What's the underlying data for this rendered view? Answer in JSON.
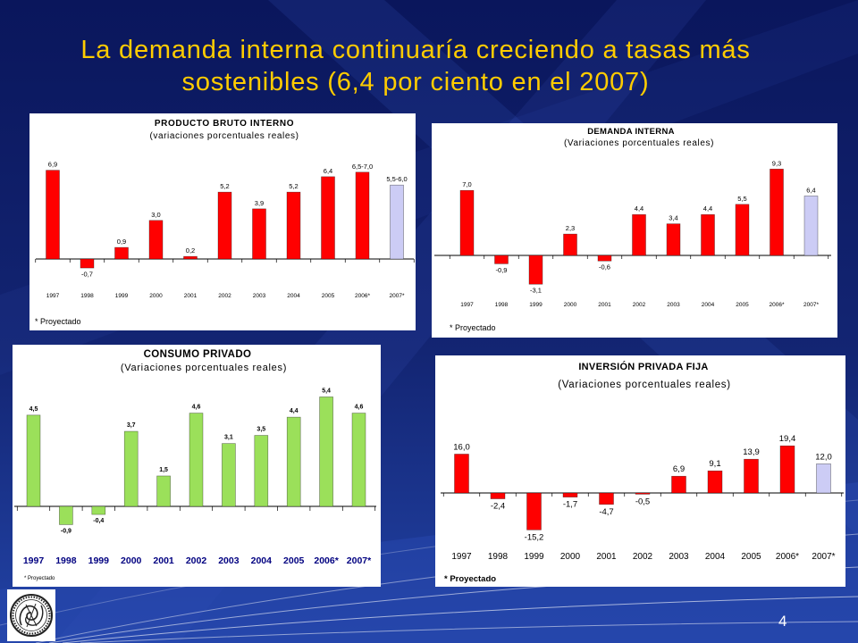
{
  "slide": {
    "title_line1": "La demanda interna continuaría creciendo a tasas más",
    "title_line2": "sostenibles (6,4 por ciento en el 2007)",
    "page_number": "4",
    "colors": {
      "title": "#ffcc00"
    }
  },
  "chart_data": [
    {
      "type": "bar",
      "title": "PRODUCTO BRUTO INTERNO",
      "subtitle": "(variaciones porcentuales reales)",
      "categories": [
        "1997",
        "1998",
        "1999",
        "2000",
        "2001",
        "2002",
        "2003",
        "2004",
        "2005",
        "2006*",
        "2007*"
      ],
      "values": [
        6.9,
        -0.7,
        0.9,
        3.0,
        0.2,
        5.2,
        3.9,
        5.2,
        6.4,
        6.75,
        5.75
      ],
      "data_labels": [
        "6,9",
        "-0,7",
        "0,9",
        "3,0",
        "0,2",
        "5,2",
        "3,9",
        "5,2",
        "6,4",
        "6,5-7,0",
        "5,5-6,0"
      ],
      "bar_colors": [
        "#ff0000",
        "#ff0000",
        "#ff0000",
        "#ff0000",
        "#ff0000",
        "#ff0000",
        "#ff0000",
        "#ff0000",
        "#ff0000",
        "#ff0000",
        "#ccccf5"
      ],
      "grid": false,
      "footnote": "* Proyectado"
    },
    {
      "type": "bar",
      "title": "DEMANDA INTERNA",
      "subtitle": "(Variaciones porcentuales reales)",
      "categories": [
        "1997",
        "1998",
        "1999",
        "2000",
        "2001",
        "2002",
        "2003",
        "2004",
        "2005",
        "2006*",
        "2007*"
      ],
      "values": [
        7.0,
        -0.9,
        -3.1,
        2.3,
        -0.6,
        4.4,
        3.4,
        4.4,
        5.5,
        9.3,
        6.4
      ],
      "data_labels": [
        "7,0",
        "-0,9",
        "-3,1",
        "2,3",
        "-0,6",
        "4,4",
        "3,4",
        "4,4",
        "5,5",
        "9,3",
        "6,4"
      ],
      "bar_colors": [
        "#ff0000",
        "#ff0000",
        "#ff0000",
        "#ff0000",
        "#ff0000",
        "#ff0000",
        "#ff0000",
        "#ff0000",
        "#ff0000",
        "#ff0000",
        "#ccccf5"
      ],
      "grid": false,
      "footnote": "* Proyectado"
    },
    {
      "type": "bar",
      "title": "CONSUMO PRIVADO",
      "subtitle": "(Variaciones porcentuales reales)",
      "categories": [
        "1997",
        "1998",
        "1999",
        "2000",
        "2001",
        "2002",
        "2003",
        "2004",
        "2005",
        "2006*",
        "2007*"
      ],
      "values": [
        4.5,
        -0.9,
        -0.4,
        3.7,
        1.5,
        4.6,
        3.1,
        3.5,
        4.4,
        5.4,
        4.6
      ],
      "data_labels": [
        "4,5",
        "-0,9",
        "-0,4",
        "3,7",
        "1,5",
        "4,6",
        "3,1",
        "3,5",
        "4,4",
        "5,4",
        "4,6"
      ],
      "bar_colors": [
        "#9be05a",
        "#9be05a",
        "#9be05a",
        "#9be05a",
        "#9be05a",
        "#9be05a",
        "#9be05a",
        "#9be05a",
        "#9be05a",
        "#9be05a",
        "#9be05a"
      ],
      "grid": false,
      "footnote": "* Proyectado"
    },
    {
      "type": "bar",
      "title": "INVERSIÓN PRIVADA FIJA",
      "subtitle": "(Variaciones porcentuales reales)",
      "categories": [
        "1997",
        "1998",
        "1999",
        "2000",
        "2001",
        "2002",
        "2003",
        "2004",
        "2005",
        "2006*",
        "2007*"
      ],
      "values": [
        16.0,
        -2.4,
        -15.2,
        -1.7,
        -4.7,
        -0.5,
        6.9,
        9.1,
        13.9,
        19.4,
        12.0
      ],
      "data_labels": [
        "16,0",
        "-2,4",
        "-15,2",
        "-1,7",
        "-4,7",
        "-0,5",
        "6,9",
        "9,1",
        "13,9",
        "19,4",
        "12,0"
      ],
      "bar_colors": [
        "#ff0000",
        "#ff0000",
        "#ff0000",
        "#ff0000",
        "#ff0000",
        "#ff0000",
        "#ff0000",
        "#ff0000",
        "#ff0000",
        "#ff0000",
        "#ccccf5"
      ],
      "grid": false,
      "footnote": "* Proyectado"
    }
  ]
}
